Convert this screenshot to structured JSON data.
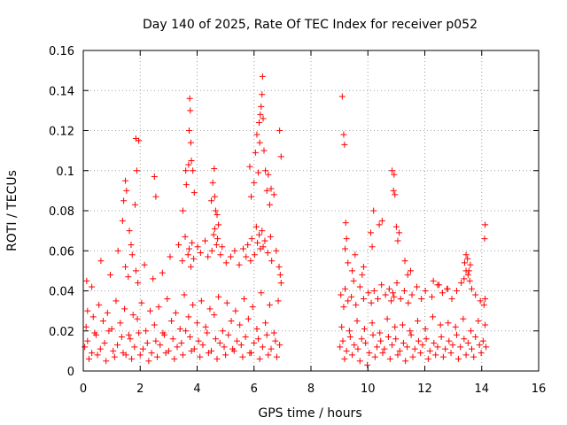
{
  "chart_data": {
    "type": "scatter",
    "title": "Day 140 of 2025, Rate Of TEC Index for receiver p052",
    "xlabel": "GPS time / hours",
    "ylabel": "ROTI / TECUs",
    "xlim": [
      0,
      16
    ],
    "ylim": [
      0,
      0.16
    ],
    "xticks": [
      "0",
      "2",
      "4",
      "6",
      "8",
      "10",
      "12",
      "14",
      "16"
    ],
    "yticks": [
      "0",
      "0.02",
      "0.04",
      "0.06",
      "0.08",
      "0.1",
      "0.12",
      "0.14",
      "0.16"
    ],
    "grid": true,
    "marker": "+",
    "series_color": "#ff0000",
    "coverage": [
      [
        0.0,
        7.0
      ],
      [
        9.0,
        14.2
      ]
    ],
    "series": [
      {
        "name": "ROTI",
        "x": [
          0.05,
          0.15,
          0.3,
          0.45,
          0.6,
          0.75,
          0.9,
          1.05,
          1.2,
          1.35,
          1.5,
          1.65,
          1.8,
          1.95,
          2.1,
          2.25,
          2.4,
          2.55,
          2.7,
          2.85,
          3.0,
          3.15,
          3.3,
          3.45,
          3.6,
          3.75,
          3.9,
          4.05,
          4.2,
          4.35,
          4.5,
          4.65,
          4.8,
          4.95,
          5.1,
          5.25,
          5.4,
          5.55,
          5.7,
          5.85,
          6.0,
          6.15,
          6.3,
          6.45,
          6.6,
          6.75,
          6.9,
          0.1,
          0.4,
          0.7,
          1.0,
          1.3,
          1.6,
          1.9,
          2.2,
          2.5,
          2.8,
          3.1,
          3.4,
          3.7,
          4.0,
          4.3,
          4.6,
          4.9,
          5.2,
          5.5,
          5.8,
          6.1,
          6.4,
          6.7,
          0.2,
          0.5,
          0.8,
          1.1,
          1.4,
          1.7,
          2.0,
          2.3,
          2.6,
          2.9,
          3.2,
          3.5,
          3.8,
          4.1,
          4.4,
          4.7,
          5.0,
          5.3,
          5.6,
          5.9,
          6.2,
          6.5,
          6.8,
          0.15,
          0.35,
          0.55,
          0.85,
          1.15,
          1.45,
          1.75,
          2.05,
          2.35,
          2.65,
          2.95,
          3.25,
          3.55,
          3.85,
          4.15,
          4.45,
          4.75,
          5.05,
          5.35,
          5.65,
          5.95,
          6.25,
          6.55,
          6.85,
          0.12,
          0.3,
          0.62,
          0.95,
          1.22,
          1.48,
          1.58,
          1.72,
          1.85,
          1.92,
          2.15,
          2.45,
          2.78,
          3.05,
          3.35,
          3.48,
          3.58,
          3.68,
          3.72,
          3.78,
          3.82,
          3.88,
          4.02,
          4.12,
          4.28,
          4.38,
          4.52,
          4.58,
          4.62,
          4.68,
          4.72,
          4.82,
          4.88,
          5.02,
          5.18,
          5.32,
          5.48,
          5.62,
          5.72,
          5.78,
          5.88,
          5.92,
          6.02,
          6.08,
          6.12,
          6.18,
          6.22,
          6.28,
          6.32,
          6.38,
          6.48,
          6.58,
          6.62,
          6.78,
          6.88,
          6.92,
          6.95,
          1.38,
          1.42,
          1.48,
          1.52,
          1.62,
          1.68,
          1.82,
          1.85,
          1.88,
          1.95,
          2.5,
          2.55,
          3.5,
          3.6,
          3.62,
          3.7,
          3.72,
          3.74,
          3.76,
          3.78,
          3.8,
          3.85,
          3.9,
          4.5,
          4.55,
          4.6,
          4.62,
          4.65,
          4.7,
          4.75,
          5.85,
          5.9,
          6.0,
          6.05,
          6.1,
          6.15,
          6.18,
          6.2,
          6.22,
          6.25,
          6.28,
          6.3,
          6.32,
          6.35,
          6.4,
          6.45,
          6.5,
          6.55,
          6.6,
          6.7,
          6.9,
          6.95,
          9.02,
          9.12,
          9.25,
          9.38,
          9.52,
          9.65,
          9.78,
          9.92,
          10.05,
          10.18,
          10.32,
          10.45,
          10.58,
          10.72,
          10.85,
          10.98,
          11.12,
          11.25,
          11.38,
          11.52,
          11.65,
          11.78,
          11.92,
          12.05,
          12.18,
          12.32,
          12.45,
          12.58,
          12.72,
          12.85,
          12.98,
          13.12,
          13.25,
          13.38,
          13.52,
          13.65,
          13.78,
          13.92,
          14.05,
          14.15,
          9.08,
          9.35,
          9.62,
          9.88,
          10.15,
          10.42,
          10.68,
          10.95,
          11.22,
          11.48,
          11.75,
          12.02,
          12.28,
          12.55,
          12.82,
          13.08,
          13.35,
          13.62,
          13.88,
          14.12,
          9.18,
          9.45,
          9.72,
          9.98,
          10.25,
          10.52,
          10.78,
          11.05,
          11.32,
          11.58,
          11.85,
          12.12,
          12.38,
          12.65,
          12.92,
          13.18,
          13.45,
          13.72,
          13.98,
          9.05,
          9.15,
          9.2,
          9.3,
          9.42,
          9.58,
          9.72,
          9.85,
          10.02,
          10.12,
          10.22,
          10.35,
          10.48,
          10.62,
          10.75,
          10.82,
          10.88,
          10.92,
          11.02,
          11.15,
          11.28,
          11.42,
          11.55,
          11.72,
          11.88,
          12.02,
          12.25,
          12.45,
          12.62,
          12.78,
          12.95,
          13.12,
          13.28,
          13.38,
          13.45,
          13.52,
          13.58,
          13.65,
          13.78,
          13.95,
          14.08,
          14.12,
          9.1,
          9.15,
          9.18,
          9.2,
          9.22,
          9.25,
          9.3,
          9.45,
          9.5,
          9.55,
          9.8,
          9.85,
          10.1,
          10.15,
          10.2,
          10.4,
          10.5,
          10.85,
          10.9,
          10.92,
          10.95,
          11.0,
          11.05,
          11.1,
          11.3,
          11.4,
          11.5,
          12.3,
          12.5,
          12.8,
          13.4,
          13.45,
          13.5,
          13.55,
          13.6,
          14.1,
          14.12
        ],
        "y": [
          0.012,
          0.015,
          0.009,
          0.018,
          0.011,
          0.014,
          0.02,
          0.01,
          0.013,
          0.017,
          0.008,
          0.016,
          0.012,
          0.019,
          0.011,
          0.014,
          0.009,
          0.015,
          0.013,
          0.018,
          0.01,
          0.016,
          0.012,
          0.014,
          0.02,
          0.017,
          0.011,
          0.015,
          0.013,
          0.019,
          0.01,
          0.016,
          0.014,
          0.012,
          0.018,
          0.011,
          0.015,
          0.013,
          0.017,
          0.009,
          0.014,
          0.016,
          0.012,
          0.018,
          0.011,
          0.015,
          0.013,
          0.022,
          0.019,
          0.025,
          0.021,
          0.024,
          0.018,
          0.026,
          0.02,
          0.023,
          0.019,
          0.025,
          0.021,
          0.027,
          0.024,
          0.022,
          0.028,
          0.02,
          0.025,
          0.023,
          0.026,
          0.021,
          0.024,
          0.019,
          0.006,
          0.008,
          0.005,
          0.007,
          0.009,
          0.006,
          0.008,
          0.005,
          0.007,
          0.009,
          0.006,
          0.008,
          0.01,
          0.007,
          0.009,
          0.006,
          0.008,
          0.01,
          0.007,
          0.009,
          0.006,
          0.008,
          0.007,
          0.03,
          0.027,
          0.033,
          0.029,
          0.035,
          0.031,
          0.028,
          0.034,
          0.03,
          0.032,
          0.036,
          0.029,
          0.038,
          0.033,
          0.035,
          0.031,
          0.037,
          0.034,
          0.03,
          0.036,
          0.032,
          0.039,
          0.033,
          0.035,
          0.045,
          0.042,
          0.055,
          0.048,
          0.06,
          0.052,
          0.047,
          0.058,
          0.05,
          0.044,
          0.053,
          0.046,
          0.049,
          0.057,
          0.063,
          0.055,
          0.067,
          0.058,
          0.061,
          0.052,
          0.064,
          0.056,
          0.062,
          0.059,
          0.065,
          0.057,
          0.06,
          0.068,
          0.071,
          0.063,
          0.066,
          0.058,
          0.062,
          0.054,
          0.057,
          0.06,
          0.053,
          0.061,
          0.057,
          0.063,
          0.055,
          0.066,
          0.058,
          0.072,
          0.064,
          0.068,
          0.061,
          0.07,
          0.062,
          0.065,
          0.059,
          0.067,
          0.055,
          0.06,
          0.052,
          0.048,
          0.044,
          0.075,
          0.085,
          0.095,
          0.09,
          0.07,
          0.063,
          0.083,
          0.116,
          0.1,
          0.115,
          0.097,
          0.087,
          0.08,
          0.1,
          0.093,
          0.103,
          0.12,
          0.136,
          0.13,
          0.114,
          0.105,
          0.1,
          0.089,
          0.085,
          0.094,
          0.101,
          0.087,
          0.08,
          0.078,
          0.073,
          0.102,
          0.087,
          0.094,
          0.109,
          0.118,
          0.099,
          0.124,
          0.114,
          0.128,
          0.132,
          0.138,
          0.147,
          0.126,
          0.11,
          0.1,
          0.09,
          0.098,
          0.083,
          0.091,
          0.088,
          0.12,
          0.107,
          0.012,
          0.015,
          0.01,
          0.017,
          0.013,
          0.011,
          0.016,
          0.014,
          0.009,
          0.018,
          0.012,
          0.015,
          0.011,
          0.017,
          0.013,
          0.016,
          0.01,
          0.014,
          0.012,
          0.018,
          0.011,
          0.015,
          0.013,
          0.016,
          0.01,
          0.014,
          0.012,
          0.017,
          0.011,
          0.015,
          0.013,
          0.018,
          0.012,
          0.016,
          0.014,
          0.011,
          0.017,
          0.013,
          0.015,
          0.012,
          0.022,
          0.02,
          0.025,
          0.021,
          0.024,
          0.019,
          0.026,
          0.022,
          0.023,
          0.02,
          0.025,
          0.021,
          0.027,
          0.023,
          0.024,
          0.022,
          0.026,
          0.02,
          0.025,
          0.023,
          0.006,
          0.008,
          0.005,
          0.003,
          0.007,
          0.009,
          0.006,
          0.008,
          0.005,
          0.007,
          0.009,
          0.006,
          0.008,
          0.007,
          0.009,
          0.006,
          0.008,
          0.007,
          0.009,
          0.038,
          0.032,
          0.041,
          0.035,
          0.037,
          0.033,
          0.042,
          0.036,
          0.039,
          0.034,
          0.04,
          0.036,
          0.043,
          0.038,
          0.041,
          0.035,
          0.039,
          0.037,
          0.044,
          0.036,
          0.04,
          0.034,
          0.038,
          0.042,
          0.036,
          0.04,
          0.037,
          0.043,
          0.039,
          0.041,
          0.036,
          0.04,
          0.044,
          0.046,
          0.05,
          0.048,
          0.045,
          0.041,
          0.038,
          0.035,
          0.033,
          0.036,
          0.137,
          0.118,
          0.113,
          0.061,
          0.074,
          0.066,
          0.054,
          0.05,
          0.045,
          0.058,
          0.048,
          0.052,
          0.069,
          0.062,
          0.08,
          0.073,
          0.075,
          0.1,
          0.09,
          0.098,
          0.088,
          0.072,
          0.065,
          0.069,
          0.055,
          0.048,
          0.05,
          0.045,
          0.043,
          0.041,
          0.054,
          0.058,
          0.056,
          0.05,
          0.053,
          0.066,
          0.073
        ]
      }
    ]
  }
}
